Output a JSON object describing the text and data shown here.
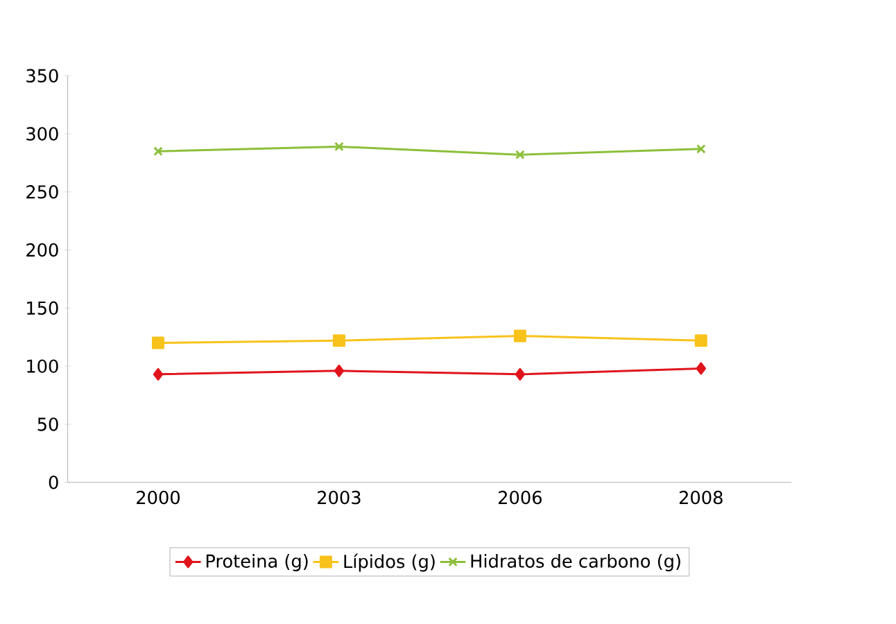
{
  "chart_data": {
    "type": "line",
    "categories": [
      "2000",
      "2003",
      "2006",
      "2008"
    ],
    "series": [
      {
        "name": "Proteina (g)",
        "color": "#e0141c",
        "marker": "diamond",
        "values": [
          93,
          96,
          93,
          98
        ]
      },
      {
        "name": "Lípidos (g)",
        "color": "#f7c21a",
        "marker": "square",
        "values": [
          120,
          122,
          126,
          122
        ]
      },
      {
        "name": "Hidratos de carbono (g)",
        "color": "#8cbf3a",
        "marker": "cross",
        "values": [
          285,
          289,
          282,
          287
        ]
      }
    ],
    "ylim": [
      0,
      350
    ],
    "yticks": [
      0,
      50,
      100,
      150,
      200,
      250,
      300,
      350
    ],
    "grid": false,
    "legend": "bottom",
    "line_style": "solid"
  }
}
